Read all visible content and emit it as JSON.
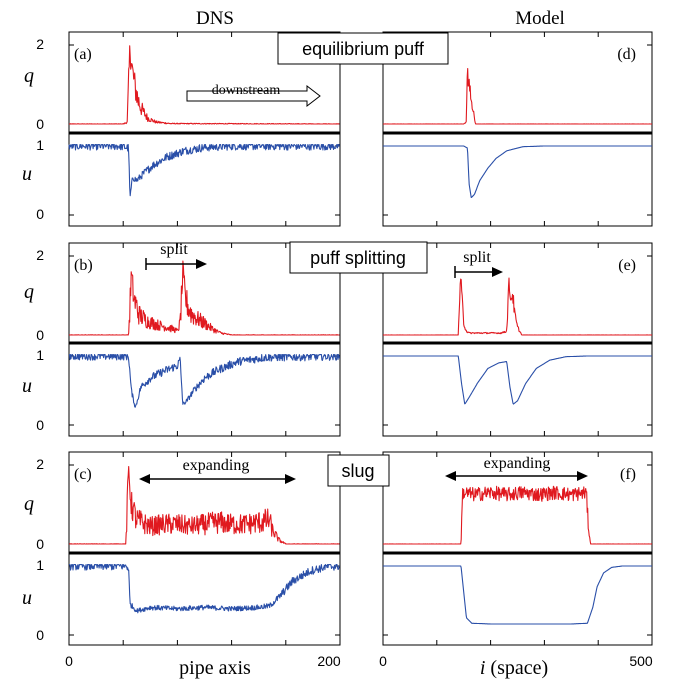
{
  "column_titles": {
    "left": "DNS",
    "right": "Model"
  },
  "row_labels": {
    "row1": "equilibrium puff",
    "row2": "puff splitting",
    "row3": "slug"
  },
  "panel_letters": [
    "(a)",
    "(b)",
    "(c)",
    "(d)",
    "(e)",
    "(f)"
  ],
  "axis_labels": {
    "q": "q",
    "u": "u",
    "left_x": "pipe axis",
    "right_x_italic": "i",
    "right_x_rest": " (space)"
  },
  "x_ticks": {
    "left": [
      "0",
      "200"
    ],
    "right": [
      "0",
      "500"
    ]
  },
  "y_ticks": {
    "q": [
      "2",
      "0"
    ],
    "u": [
      "1",
      "0"
    ]
  },
  "annotations": {
    "downstream": "downstream",
    "split_left": "split",
    "split_right": "split",
    "expanding_left": "expanding",
    "expanding_right": "expanding"
  },
  "colors": {
    "q": "#e0191f",
    "u": "#2a4fa8",
    "frame": "#000000"
  },
  "chart_data": [
    {
      "type": "line",
      "panel": "(a)",
      "column": "DNS",
      "row": "equilibrium puff",
      "x_range": [
        0,
        200
      ],
      "q_range": [
        0,
        2
      ],
      "u_range": [
        0,
        1
      ],
      "series": [
        {
          "name": "q",
          "points": [
            [
              0,
              0
            ],
            [
              40,
              0
            ],
            [
              43,
              0.05
            ],
            [
              45,
              1.9
            ],
            [
              47,
              1.3
            ],
            [
              49,
              0.9
            ],
            [
              51,
              0.6
            ],
            [
              54,
              0.35
            ],
            [
              58,
              0.15
            ],
            [
              64,
              0.05
            ],
            [
              75,
              0.01
            ],
            [
              200,
              0
            ]
          ]
        },
        {
          "name": "u",
          "points": [
            [
              0,
              1
            ],
            [
              38,
              1
            ],
            [
              44,
              0.97
            ],
            [
              45,
              0.25
            ],
            [
              47,
              0.55
            ],
            [
              50,
              0.5
            ],
            [
              55,
              0.6
            ],
            [
              62,
              0.72
            ],
            [
              72,
              0.84
            ],
            [
              85,
              0.93
            ],
            [
              100,
              0.98
            ],
            [
              120,
              1
            ],
            [
              200,
              1
            ]
          ]
        }
      ]
    },
    {
      "type": "line",
      "panel": "(b)",
      "column": "DNS",
      "row": "puff splitting",
      "x_range": [
        0,
        200
      ],
      "q_range": [
        0,
        2
      ],
      "u_range": [
        0,
        1
      ],
      "series": [
        {
          "name": "q",
          "points": [
            [
              0,
              0
            ],
            [
              44,
              0
            ],
            [
              46,
              1.5
            ],
            [
              48,
              0.9
            ],
            [
              52,
              0.5
            ],
            [
              58,
              0.35
            ],
            [
              66,
              0.25
            ],
            [
              72,
              0.2
            ],
            [
              77,
              0.15
            ],
            [
              80,
              0.1
            ],
            [
              82,
              0.3
            ],
            [
              84,
              1.55
            ],
            [
              86,
              0.9
            ],
            [
              90,
              0.55
            ],
            [
              95,
              0.4
            ],
            [
              100,
              0.3
            ],
            [
              106,
              0.15
            ],
            [
              112,
              0.05
            ],
            [
              120,
              0
            ],
            [
              200,
              0
            ]
          ]
        },
        {
          "name": "u",
          "points": [
            [
              0,
              1
            ],
            [
              44,
              1
            ],
            [
              46,
              0.5
            ],
            [
              49,
              0.25
            ],
            [
              53,
              0.55
            ],
            [
              60,
              0.68
            ],
            [
              70,
              0.78
            ],
            [
              80,
              0.86
            ],
            [
              82,
              0.95
            ],
            [
              84,
              0.3
            ],
            [
              87,
              0.35
            ],
            [
              92,
              0.5
            ],
            [
              100,
              0.68
            ],
            [
              110,
              0.8
            ],
            [
              125,
              0.92
            ],
            [
              145,
              0.98
            ],
            [
              200,
              1
            ]
          ]
        }
      ]
    },
    {
      "type": "line",
      "panel": "(c)",
      "column": "DNS",
      "row": "slug",
      "x_range": [
        0,
        200
      ],
      "q_range": [
        0,
        2
      ],
      "u_range": [
        0,
        1
      ],
      "series": [
        {
          "name": "q",
          "points": [
            [
              0,
              0
            ],
            [
              42,
              0
            ],
            [
              44,
              1.9
            ],
            [
              46,
              1.0
            ],
            [
              50,
              0.6
            ],
            [
              60,
              0.45
            ],
            [
              70,
              0.5
            ],
            [
              80,
              0.5
            ],
            [
              90,
              0.45
            ],
            [
              100,
              0.5
            ],
            [
              110,
              0.55
            ],
            [
              120,
              0.5
            ],
            [
              130,
              0.5
            ],
            [
              140,
              0.55
            ],
            [
              148,
              0.6
            ],
            [
              150,
              0.35
            ],
            [
              155,
              0.1
            ],
            [
              160,
              0
            ],
            [
              200,
              0
            ]
          ]
        },
        {
          "name": "u",
          "points": [
            [
              0,
              1
            ],
            [
              42,
              1
            ],
            [
              44,
              0.97
            ],
            [
              45,
              0.45
            ],
            [
              50,
              0.35
            ],
            [
              60,
              0.4
            ],
            [
              80,
              0.38
            ],
            [
              100,
              0.4
            ],
            [
              120,
              0.38
            ],
            [
              140,
              0.4
            ],
            [
              148,
              0.42
            ],
            [
              155,
              0.55
            ],
            [
              165,
              0.78
            ],
            [
              178,
              0.93
            ],
            [
              190,
              0.99
            ],
            [
              200,
              1
            ]
          ]
        }
      ]
    },
    {
      "type": "line",
      "panel": "(d)",
      "column": "Model",
      "row": "equilibrium puff",
      "x_range": [
        0,
        500
      ],
      "q_range": [
        0,
        2
      ],
      "u_range": [
        0,
        1
      ],
      "series": [
        {
          "name": "q",
          "points": [
            [
              0,
              0
            ],
            [
              150,
              0
            ],
            [
              155,
              0.05
            ],
            [
              157,
              1.5
            ],
            [
              159,
              0.9
            ],
            [
              161,
              1.0
            ],
            [
              163,
              0.6
            ],
            [
              166,
              0.5
            ],
            [
              169,
              0.2
            ],
            [
              172,
              0
            ],
            [
              500,
              0
            ]
          ]
        },
        {
          "name": "u",
          "points": [
            [
              0,
              1
            ],
            [
              150,
              1
            ],
            [
              157,
              0.97
            ],
            [
              160,
              0.45
            ],
            [
              164,
              0.25
            ],
            [
              170,
              0.3
            ],
            [
              180,
              0.5
            ],
            [
              195,
              0.68
            ],
            [
              210,
              0.82
            ],
            [
              230,
              0.93
            ],
            [
              260,
              0.99
            ],
            [
              300,
              1
            ],
            [
              500,
              1
            ]
          ]
        }
      ]
    },
    {
      "type": "line",
      "panel": "(e)",
      "column": "Model",
      "row": "puff splitting",
      "x_range": [
        0,
        500
      ],
      "q_range": [
        0,
        2
      ],
      "u_range": [
        0,
        1
      ],
      "series": [
        {
          "name": "q",
          "points": [
            [
              0,
              0
            ],
            [
              140,
              0
            ],
            [
              144,
              1.5
            ],
            [
              147,
              0.9
            ],
            [
              150,
              0.3
            ],
            [
              155,
              0.1
            ],
            [
              160,
              0.05
            ],
            [
              220,
              0.05
            ],
            [
              230,
              0.1
            ],
            [
              234,
              1.3
            ],
            [
              238,
              0.9
            ],
            [
              241,
              1.05
            ],
            [
              245,
              0.5
            ],
            [
              250,
              0.2
            ],
            [
              258,
              0
            ],
            [
              500,
              0
            ]
          ]
        },
        {
          "name": "u",
          "points": [
            [
              0,
              1
            ],
            [
              140,
              1
            ],
            [
              146,
              0.6
            ],
            [
              152,
              0.3
            ],
            [
              160,
              0.4
            ],
            [
              175,
              0.6
            ],
            [
              195,
              0.82
            ],
            [
              215,
              0.9
            ],
            [
              230,
              0.92
            ],
            [
              236,
              0.55
            ],
            [
              242,
              0.3
            ],
            [
              250,
              0.35
            ],
            [
              265,
              0.6
            ],
            [
              285,
              0.82
            ],
            [
              310,
              0.94
            ],
            [
              340,
              0.99
            ],
            [
              380,
              1
            ],
            [
              500,
              1
            ]
          ]
        }
      ]
    },
    {
      "type": "line",
      "panel": "(f)",
      "column": "Model",
      "row": "slug",
      "x_range": [
        0,
        500
      ],
      "q_range": [
        0,
        2
      ],
      "u_range": [
        0,
        1
      ],
      "series": [
        {
          "name": "q",
          "points": [
            [
              0,
              0
            ],
            [
              145,
              0
            ],
            [
              148,
              1.3
            ],
            [
              170,
              1.25
            ],
            [
              200,
              1.3
            ],
            [
              230,
              1.25
            ],
            [
              260,
              1.3
            ],
            [
              290,
              1.25
            ],
            [
              320,
              1.3
            ],
            [
              350,
              1.25
            ],
            [
              378,
              1.3
            ],
            [
              382,
              0.4
            ],
            [
              386,
              0
            ],
            [
              500,
              0
            ]
          ]
        },
        {
          "name": "u",
          "points": [
            [
              0,
              1
            ],
            [
              145,
              1
            ],
            [
              149,
              0.7
            ],
            [
              155,
              0.25
            ],
            [
              165,
              0.17
            ],
            [
              200,
              0.16
            ],
            [
              250,
              0.16
            ],
            [
              300,
              0.16
            ],
            [
              350,
              0.16
            ],
            [
              380,
              0.17
            ],
            [
              390,
              0.4
            ],
            [
              398,
              0.7
            ],
            [
              410,
              0.9
            ],
            [
              425,
              0.98
            ],
            [
              445,
              1
            ],
            [
              500,
              1
            ]
          ]
        }
      ]
    }
  ]
}
